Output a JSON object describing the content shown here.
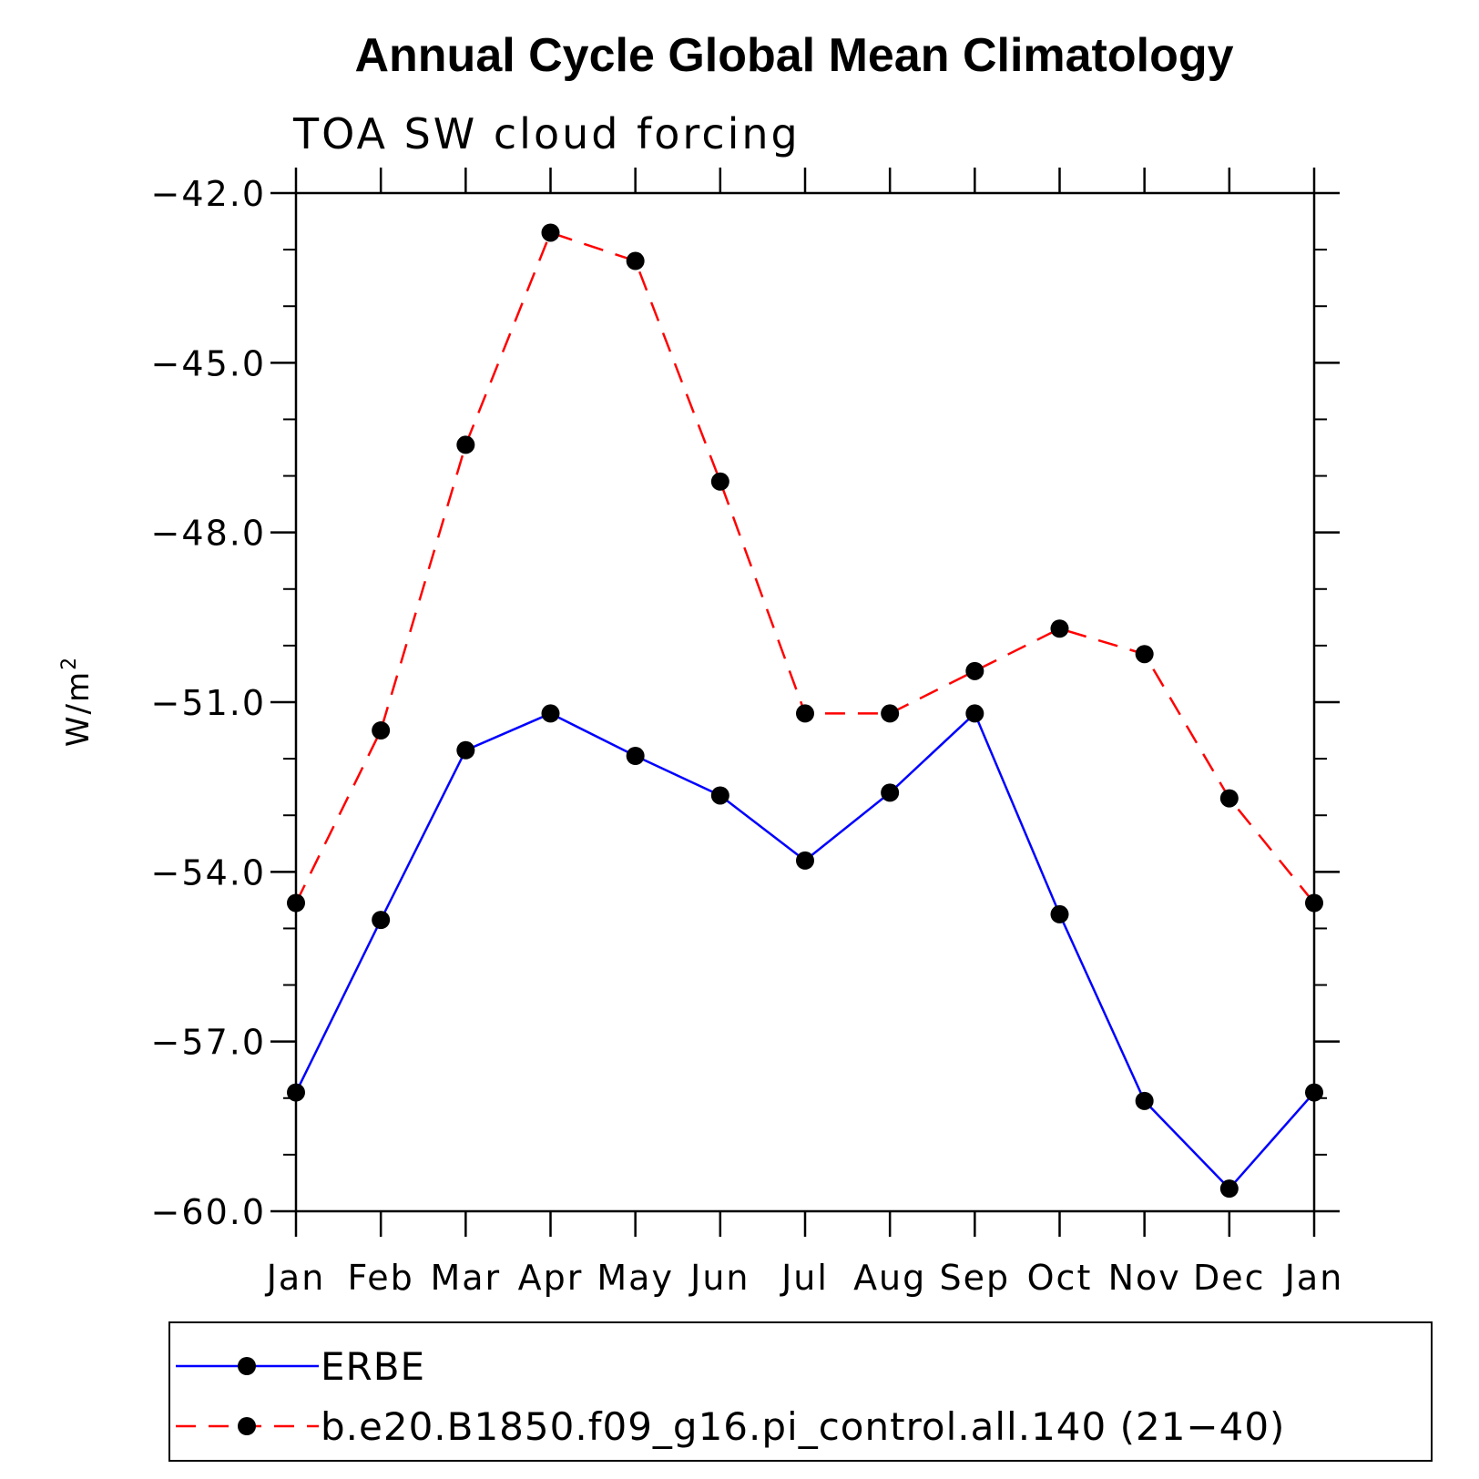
{
  "chart_data": {
    "type": "line",
    "title": "Annual Cycle Global Mean Climatology",
    "subtitle": "TOA SW cloud forcing",
    "ylabel_base": "W/m",
    "ylabel_sup": "2",
    "xlabel": "",
    "categories": [
      "Jan",
      "Feb",
      "Mar",
      "Apr",
      "May",
      "Jun",
      "Jul",
      "Aug",
      "Sep",
      "Oct",
      "Nov",
      "Dec",
      "Jan"
    ],
    "ylim": [
      -60.0,
      -42.0
    ],
    "yticks": [
      -42.0,
      -45.0,
      -48.0,
      -51.0,
      -54.0,
      -57.0,
      -60.0
    ],
    "ytick_labels": [
      "−42.0",
      "−45.0",
      "−48.0",
      "−51.0",
      "−54.0",
      "−57.0",
      "−60.0"
    ],
    "grid": false,
    "legend_position": "bottom",
    "series": [
      {
        "name": "ERBE",
        "color": "#0000ff",
        "line_style": "solid",
        "marker": "filled-circle",
        "values": [
          -57.9,
          -54.85,
          -51.85,
          -51.2,
          -51.95,
          -52.65,
          -53.8,
          -52.6,
          -51.2,
          -54.75,
          -58.05,
          -59.6,
          -57.9
        ]
      },
      {
        "name": "b.e20.B1850.f09_g16.pi_control.all.140 (21−40)",
        "color": "#ff0000",
        "line_style": "dashed",
        "marker": "filled-circle",
        "values": [
          -54.55,
          -51.5,
          -46.45,
          -42.7,
          -43.2,
          -47.1,
          -51.2,
          -51.2,
          -50.45,
          -49.7,
          -50.15,
          -52.7,
          -54.55
        ]
      }
    ]
  }
}
